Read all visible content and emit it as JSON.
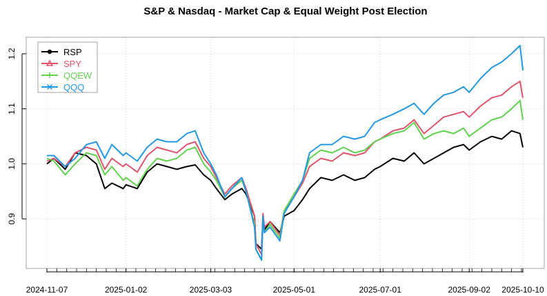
{
  "chart_data": {
    "type": "line",
    "title": "S&P & Nasdaq - Market Cap & Equal Weight Post Election",
    "xlabel": "",
    "ylabel": "",
    "x_tick_labels": [
      "2024-11-07",
      "2025-01-02",
      "2025-03-03",
      "2025-05-01",
      "2025-07-01",
      "2025-09-02",
      "2025-10-10"
    ],
    "x_range": [
      "2024-11-07",
      "2025-10-10"
    ],
    "ylim": [
      0.81,
      1.23
    ],
    "y_ticks": [
      0.9,
      1.0,
      1.1,
      1.2
    ],
    "y_tick_labels": [
      "0.9",
      "1.0",
      "1.1",
      "1.2"
    ],
    "grid": true,
    "legend_position": "top-left",
    "series": [
      {
        "name": "RSP",
        "color": "#000000",
        "marker": "circle",
        "points": [
          [
            "2024-11-07",
            1.0
          ],
          [
            "2024-11-12",
            1.01
          ],
          [
            "2024-11-20",
            0.99
          ],
          [
            "2024-11-27",
            1.02
          ],
          [
            "2024-12-05",
            1.015
          ],
          [
            "2024-12-12",
            1.0
          ],
          [
            "2024-12-18",
            0.955
          ],
          [
            "2024-12-23",
            0.965
          ],
          [
            "2024-12-31",
            0.955
          ],
          [
            "2025-01-02",
            0.962
          ],
          [
            "2025-01-10",
            0.955
          ],
          [
            "2025-01-17",
            0.985
          ],
          [
            "2025-01-24",
            1.0
          ],
          [
            "2025-01-31",
            0.995
          ],
          [
            "2025-02-07",
            0.99
          ],
          [
            "2025-02-14",
            0.995
          ],
          [
            "2025-02-20",
            0.998
          ],
          [
            "2025-02-26",
            0.98
          ],
          [
            "2025-03-03",
            0.97
          ],
          [
            "2025-03-07",
            0.955
          ],
          [
            "2025-03-13",
            0.935
          ],
          [
            "2025-03-18",
            0.945
          ],
          [
            "2025-03-25",
            0.955
          ],
          [
            "2025-03-28",
            0.945
          ],
          [
            "2025-04-03",
            0.905
          ],
          [
            "2025-04-04",
            0.855
          ],
          [
            "2025-04-08",
            0.845
          ],
          [
            "2025-04-09",
            0.905
          ],
          [
            "2025-04-10",
            0.88
          ],
          [
            "2025-04-14",
            0.895
          ],
          [
            "2025-04-21",
            0.875
          ],
          [
            "2025-04-24",
            0.905
          ],
          [
            "2025-05-01",
            0.915
          ],
          [
            "2025-05-07",
            0.935
          ],
          [
            "2025-05-12",
            0.955
          ],
          [
            "2025-05-20",
            0.975
          ],
          [
            "2025-05-28",
            0.97
          ],
          [
            "2025-06-05",
            0.98
          ],
          [
            "2025-06-13",
            0.97
          ],
          [
            "2025-06-20",
            0.975
          ],
          [
            "2025-06-27",
            0.99
          ],
          [
            "2025-07-01",
            0.995
          ],
          [
            "2025-07-10",
            1.01
          ],
          [
            "2025-07-18",
            1.005
          ],
          [
            "2025-07-25",
            1.02
          ],
          [
            "2025-08-01",
            1.0
          ],
          [
            "2025-08-08",
            1.01
          ],
          [
            "2025-08-15",
            1.02
          ],
          [
            "2025-08-22",
            1.03
          ],
          [
            "2025-08-29",
            1.035
          ],
          [
            "2025-09-02",
            1.025
          ],
          [
            "2025-09-10",
            1.04
          ],
          [
            "2025-09-18",
            1.05
          ],
          [
            "2025-09-25",
            1.045
          ],
          [
            "2025-10-02",
            1.06
          ],
          [
            "2025-10-08",
            1.055
          ],
          [
            "2025-10-10",
            1.03
          ]
        ]
      },
      {
        "name": "SPY",
        "color": "#DF536B",
        "marker": "triangle",
        "points": [
          [
            "2024-11-07",
            1.005
          ],
          [
            "2024-11-12",
            1.01
          ],
          [
            "2024-11-20",
            0.995
          ],
          [
            "2024-11-27",
            1.02
          ],
          [
            "2024-12-05",
            1.03
          ],
          [
            "2024-12-12",
            1.025
          ],
          [
            "2024-12-18",
            0.99
          ],
          [
            "2024-12-23",
            1.01
          ],
          [
            "2024-12-31",
            0.995
          ],
          [
            "2025-01-02",
            1.0
          ],
          [
            "2025-01-10",
            0.985
          ],
          [
            "2025-01-17",
            1.015
          ],
          [
            "2025-01-24",
            1.03
          ],
          [
            "2025-01-31",
            1.025
          ],
          [
            "2025-02-07",
            1.02
          ],
          [
            "2025-02-14",
            1.035
          ],
          [
            "2025-02-20",
            1.04
          ],
          [
            "2025-02-26",
            1.01
          ],
          [
            "2025-03-03",
            0.995
          ],
          [
            "2025-03-07",
            0.975
          ],
          [
            "2025-03-13",
            0.945
          ],
          [
            "2025-03-18",
            0.96
          ],
          [
            "2025-03-25",
            0.975
          ],
          [
            "2025-03-28",
            0.955
          ],
          [
            "2025-04-03",
            0.905
          ],
          [
            "2025-04-04",
            0.855
          ],
          [
            "2025-04-08",
            0.835
          ],
          [
            "2025-04-09",
            0.91
          ],
          [
            "2025-04-10",
            0.885
          ],
          [
            "2025-04-14",
            0.895
          ],
          [
            "2025-04-21",
            0.87
          ],
          [
            "2025-04-24",
            0.915
          ],
          [
            "2025-05-01",
            0.94
          ],
          [
            "2025-05-07",
            0.965
          ],
          [
            "2025-05-12",
            0.995
          ],
          [
            "2025-05-20",
            1.01
          ],
          [
            "2025-05-28",
            1.005
          ],
          [
            "2025-06-05",
            1.02
          ],
          [
            "2025-06-13",
            1.015
          ],
          [
            "2025-06-20",
            1.02
          ],
          [
            "2025-06-27",
            1.04
          ],
          [
            "2025-07-01",
            1.045
          ],
          [
            "2025-07-10",
            1.06
          ],
          [
            "2025-07-18",
            1.065
          ],
          [
            "2025-07-25",
            1.08
          ],
          [
            "2025-08-01",
            1.055
          ],
          [
            "2025-08-08",
            1.07
          ],
          [
            "2025-08-15",
            1.085
          ],
          [
            "2025-08-22",
            1.09
          ],
          [
            "2025-08-29",
            1.095
          ],
          [
            "2025-09-02",
            1.085
          ],
          [
            "2025-09-10",
            1.105
          ],
          [
            "2025-09-18",
            1.12
          ],
          [
            "2025-09-25",
            1.125
          ],
          [
            "2025-10-02",
            1.14
          ],
          [
            "2025-10-08",
            1.15
          ],
          [
            "2025-10-10",
            1.12
          ]
        ]
      },
      {
        "name": "QQEW",
        "color": "#61D04F",
        "marker": "plus",
        "points": [
          [
            "2024-11-07",
            1.01
          ],
          [
            "2024-11-12",
            1.005
          ],
          [
            "2024-11-20",
            0.98
          ],
          [
            "2024-11-27",
            1.0
          ],
          [
            "2024-12-05",
            1.02
          ],
          [
            "2024-12-12",
            1.015
          ],
          [
            "2024-12-18",
            0.98
          ],
          [
            "2024-12-23",
            0.995
          ],
          [
            "2024-12-31",
            0.97
          ],
          [
            "2025-01-02",
            0.975
          ],
          [
            "2025-01-10",
            0.96
          ],
          [
            "2025-01-17",
            0.99
          ],
          [
            "2025-01-24",
            1.01
          ],
          [
            "2025-01-31",
            1.005
          ],
          [
            "2025-02-07",
            1.01
          ],
          [
            "2025-02-14",
            1.025
          ],
          [
            "2025-02-20",
            1.03
          ],
          [
            "2025-02-26",
            1.0
          ],
          [
            "2025-03-03",
            0.985
          ],
          [
            "2025-03-07",
            0.97
          ],
          [
            "2025-03-13",
            0.94
          ],
          [
            "2025-03-18",
            0.955
          ],
          [
            "2025-03-25",
            0.97
          ],
          [
            "2025-03-28",
            0.95
          ],
          [
            "2025-04-03",
            0.89
          ],
          [
            "2025-04-04",
            0.845
          ],
          [
            "2025-04-08",
            0.825
          ],
          [
            "2025-04-09",
            0.9
          ],
          [
            "2025-04-10",
            0.875
          ],
          [
            "2025-04-14",
            0.89
          ],
          [
            "2025-04-21",
            0.865
          ],
          [
            "2025-04-24",
            0.915
          ],
          [
            "2025-05-01",
            0.945
          ],
          [
            "2025-05-07",
            0.97
          ],
          [
            "2025-05-12",
            1.01
          ],
          [
            "2025-05-20",
            1.025
          ],
          [
            "2025-05-28",
            1.02
          ],
          [
            "2025-06-05",
            1.03
          ],
          [
            "2025-06-13",
            1.02
          ],
          [
            "2025-06-20",
            1.025
          ],
          [
            "2025-06-27",
            1.04
          ],
          [
            "2025-07-01",
            1.045
          ],
          [
            "2025-07-10",
            1.055
          ],
          [
            "2025-07-18",
            1.06
          ],
          [
            "2025-07-25",
            1.075
          ],
          [
            "2025-08-01",
            1.045
          ],
          [
            "2025-08-08",
            1.055
          ],
          [
            "2025-08-15",
            1.06
          ],
          [
            "2025-08-22",
            1.055
          ],
          [
            "2025-08-29",
            1.065
          ],
          [
            "2025-09-02",
            1.05
          ],
          [
            "2025-09-10",
            1.065
          ],
          [
            "2025-09-18",
            1.08
          ],
          [
            "2025-09-25",
            1.085
          ],
          [
            "2025-10-02",
            1.1
          ],
          [
            "2025-10-08",
            1.115
          ],
          [
            "2025-10-10",
            1.08
          ]
        ]
      },
      {
        "name": "QQQ",
        "color": "#2297E6",
        "marker": "cross",
        "points": [
          [
            "2024-11-07",
            1.015
          ],
          [
            "2024-11-12",
            1.015
          ],
          [
            "2024-11-20",
            0.995
          ],
          [
            "2024-11-27",
            1.01
          ],
          [
            "2024-12-05",
            1.035
          ],
          [
            "2024-12-12",
            1.04
          ],
          [
            "2024-12-18",
            1.01
          ],
          [
            "2024-12-23",
            1.035
          ],
          [
            "2024-12-31",
            1.015
          ],
          [
            "2025-01-02",
            1.02
          ],
          [
            "2025-01-10",
            1.005
          ],
          [
            "2025-01-17",
            1.03
          ],
          [
            "2025-01-24",
            1.045
          ],
          [
            "2025-01-31",
            1.04
          ],
          [
            "2025-02-07",
            1.04
          ],
          [
            "2025-02-14",
            1.055
          ],
          [
            "2025-02-20",
            1.06
          ],
          [
            "2025-02-26",
            1.02
          ],
          [
            "2025-03-03",
            1.0
          ],
          [
            "2025-03-07",
            0.98
          ],
          [
            "2025-03-13",
            0.94
          ],
          [
            "2025-03-18",
            0.955
          ],
          [
            "2025-03-25",
            0.975
          ],
          [
            "2025-03-28",
            0.95
          ],
          [
            "2025-04-03",
            0.885
          ],
          [
            "2025-04-04",
            0.845
          ],
          [
            "2025-04-08",
            0.825
          ],
          [
            "2025-04-09",
            0.905
          ],
          [
            "2025-04-10",
            0.875
          ],
          [
            "2025-04-14",
            0.885
          ],
          [
            "2025-04-21",
            0.86
          ],
          [
            "2025-04-24",
            0.91
          ],
          [
            "2025-05-01",
            0.94
          ],
          [
            "2025-05-07",
            0.97
          ],
          [
            "2025-05-12",
            1.02
          ],
          [
            "2025-05-20",
            1.035
          ],
          [
            "2025-05-28",
            1.035
          ],
          [
            "2025-06-05",
            1.05
          ],
          [
            "2025-06-13",
            1.045
          ],
          [
            "2025-06-20",
            1.05
          ],
          [
            "2025-06-27",
            1.075
          ],
          [
            "2025-07-01",
            1.08
          ],
          [
            "2025-07-10",
            1.09
          ],
          [
            "2025-07-18",
            1.1
          ],
          [
            "2025-07-25",
            1.11
          ],
          [
            "2025-08-01",
            1.09
          ],
          [
            "2025-08-08",
            1.11
          ],
          [
            "2025-08-15",
            1.125
          ],
          [
            "2025-08-22",
            1.13
          ],
          [
            "2025-08-29",
            1.14
          ],
          [
            "2025-09-02",
            1.13
          ],
          [
            "2025-09-10",
            1.155
          ],
          [
            "2025-09-18",
            1.175
          ],
          [
            "2025-09-25",
            1.185
          ],
          [
            "2025-10-02",
            1.2
          ],
          [
            "2025-10-08",
            1.215
          ],
          [
            "2025-10-10",
            1.17
          ]
        ]
      }
    ]
  }
}
